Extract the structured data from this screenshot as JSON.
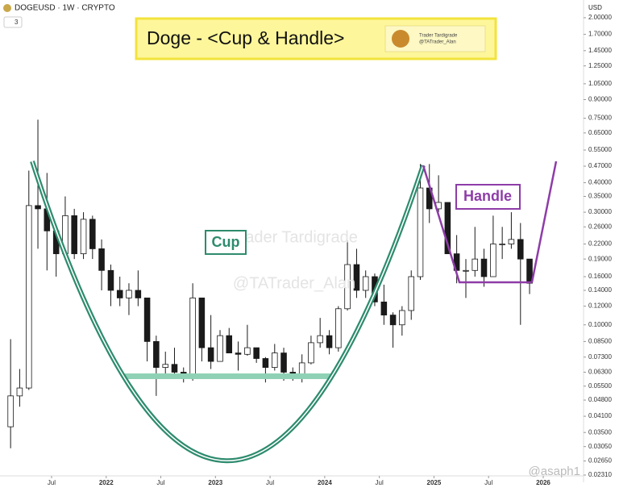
{
  "header": {
    "symbol": "DOGEUSD · 1W · CRYPTO",
    "count": "3",
    "currency": "USD"
  },
  "banner": {
    "title": "Doge - <Cup & Handle>",
    "logo_name": "Trader Tardigrade",
    "logo_handle": "@TATrader_Alan"
  },
  "chart_data": {
    "type": "candlestick",
    "x": [
      2021.125,
      2021.208,
      2021.292,
      2021.375,
      2021.458,
      2021.542,
      2021.625,
      2021.708,
      2021.792,
      2021.875,
      2021.958,
      2022.042,
      2022.125,
      2022.208,
      2022.292,
      2022.375,
      2022.458,
      2022.542,
      2022.625,
      2022.708,
      2022.792,
      2022.875,
      2022.958,
      2023.042,
      2023.125,
      2023.208,
      2023.292,
      2023.375,
      2023.458,
      2023.542,
      2023.625,
      2023.708,
      2023.792,
      2023.875,
      2023.958,
      2024.042,
      2024.125,
      2024.208,
      2024.292,
      2024.375,
      2024.458,
      2024.542,
      2024.625,
      2024.708,
      2024.792,
      2024.875,
      2024.958,
      2025.042,
      2025.125,
      2025.208,
      2025.292,
      2025.375,
      2025.458,
      2025.542,
      2025.625,
      2025.708,
      2025.792,
      2025.875
    ],
    "open": [
      0.037,
      0.05,
      0.054,
      0.32,
      0.31,
      0.25,
      0.2,
      0.29,
      0.2,
      0.28,
      0.21,
      0.17,
      0.14,
      0.13,
      0.14,
      0.13,
      0.085,
      0.066,
      0.068,
      0.063,
      0.061,
      0.13,
      0.08,
      0.07,
      0.09,
      0.076,
      0.075,
      0.08,
      0.072,
      0.066,
      0.076,
      0.063,
      0.062,
      0.069,
      0.084,
      0.09,
      0.08,
      0.117,
      0.18,
      0.14,
      0.16,
      0.125,
      0.11,
      0.1,
      0.115,
      0.16,
      0.38,
      0.31,
      0.33,
      0.2,
      0.17,
      0.17,
      0.19,
      0.16,
      0.22,
      0.22,
      0.23,
      0.19
    ],
    "high": [
      0.087,
      0.065,
      0.45,
      0.74,
      0.44,
      0.26,
      0.35,
      0.31,
      0.3,
      0.29,
      0.23,
      0.18,
      0.16,
      0.15,
      0.17,
      0.13,
      0.09,
      0.077,
      0.08,
      0.066,
      0.15,
      0.13,
      0.11,
      0.095,
      0.097,
      0.085,
      0.1,
      0.08,
      0.073,
      0.083,
      0.08,
      0.066,
      0.075,
      0.09,
      0.107,
      0.095,
      0.12,
      0.228,
      0.21,
      0.17,
      0.165,
      0.148,
      0.113,
      0.12,
      0.17,
      0.48,
      0.48,
      0.43,
      0.33,
      0.24,
      0.19,
      0.26,
      0.21,
      0.29,
      0.26,
      0.3,
      0.27,
      0.19
    ],
    "low": [
      0.03,
      0.045,
      0.053,
      0.21,
      0.17,
      0.16,
      0.19,
      0.19,
      0.19,
      0.19,
      0.14,
      0.12,
      0.12,
      0.11,
      0.12,
      0.07,
      0.05,
      0.06,
      0.06,
      0.057,
      0.058,
      0.07,
      0.065,
      0.07,
      0.078,
      0.064,
      0.074,
      0.069,
      0.057,
      0.064,
      0.058,
      0.058,
      0.057,
      0.068,
      0.08,
      0.075,
      0.077,
      0.115,
      0.13,
      0.13,
      0.12,
      0.1,
      0.08,
      0.09,
      0.105,
      0.155,
      0.27,
      0.3,
      0.2,
      0.15,
      0.13,
      0.16,
      0.145,
      0.16,
      0.19,
      0.21,
      0.1,
      0.135
    ],
    "close": [
      0.05,
      0.054,
      0.32,
      0.31,
      0.25,
      0.2,
      0.29,
      0.2,
      0.28,
      0.21,
      0.17,
      0.14,
      0.13,
      0.14,
      0.13,
      0.085,
      0.066,
      0.068,
      0.063,
      0.061,
      0.13,
      0.08,
      0.07,
      0.09,
      0.076,
      0.075,
      0.08,
      0.072,
      0.066,
      0.076,
      0.063,
      0.062,
      0.069,
      0.084,
      0.09,
      0.08,
      0.117,
      0.18,
      0.14,
      0.16,
      0.125,
      0.11,
      0.1,
      0.115,
      0.16,
      0.38,
      0.31,
      0.33,
      0.2,
      0.17,
      0.17,
      0.19,
      0.16,
      0.22,
      0.22,
      0.23,
      0.19,
      0.15
    ],
    "xlim": [
      2021.028,
      2026.369
    ],
    "xticks": [
      {
        "value": 2021.5,
        "label": "Jul"
      },
      2022,
      {
        "value": 2022.5,
        "label": "Jul"
      },
      2023,
      {
        "value": 2023.5,
        "label": "Jul"
      },
      2024,
      {
        "value": 2024.5,
        "label": "Jul"
      },
      2025,
      {
        "value": 2025.5,
        "label": "Jul"
      },
      2026
    ],
    "ylim": [
      0.02292,
      2.377
    ],
    "log_scale": true,
    "yticks": [
      {
        "value": 2.0,
        "label": "2.00000"
      },
      {
        "value": 1.7,
        "label": "1.70000"
      },
      {
        "value": 1.45,
        "label": "1.45000"
      },
      {
        "value": 1.25,
        "label": "1.25000"
      },
      {
        "value": 1.05,
        "label": "1.05000"
      },
      {
        "value": 0.9,
        "label": "0.90000"
      },
      {
        "value": 0.75,
        "label": "0.75000"
      },
      {
        "value": 0.65,
        "label": "0.65000"
      },
      {
        "value": 0.55,
        "label": "0.55000"
      },
      {
        "value": 0.47,
        "label": "0.47000"
      },
      {
        "value": 0.4,
        "label": "0.40000"
      },
      {
        "value": 0.35,
        "label": "0.35000"
      },
      {
        "value": 0.3,
        "label": "0.30000"
      },
      {
        "value": 0.26,
        "label": "0.26000"
      },
      {
        "value": 0.22,
        "label": "0.22000"
      },
      {
        "value": 0.19,
        "label": "0.19000"
      },
      {
        "value": 0.16,
        "label": "0.16000"
      },
      {
        "value": 0.14,
        "label": "0.14000"
      },
      {
        "value": 0.12,
        "label": "0.12000"
      },
      {
        "value": 0.1,
        "label": "0.10000"
      },
      {
        "value": 0.085,
        "label": "0.08500"
      },
      {
        "value": 0.073,
        "label": "0.07300"
      },
      {
        "value": 0.063,
        "label": "0.06300"
      },
      {
        "value": 0.055,
        "label": "0.05500"
      },
      {
        "value": 0.048,
        "label": "0.04800"
      },
      {
        "value": 0.041,
        "label": "0.04100"
      },
      {
        "value": 0.035,
        "label": "0.03500"
      },
      {
        "value": 0.0305,
        "label": "0.03050"
      },
      {
        "value": 0.0265,
        "label": "0.02650"
      },
      {
        "value": 0.0231,
        "label": "0.02310"
      }
    ],
    "up_color": "#ffffff",
    "down_color": "#1a1a1a",
    "annotations": {
      "cup": "Cup",
      "handle": "Handle"
    },
    "watermarks": [
      "Trader Tardigrade",
      "@TATrader_Alan"
    ]
  },
  "footer": {
    "credit": "@asaph1"
  }
}
